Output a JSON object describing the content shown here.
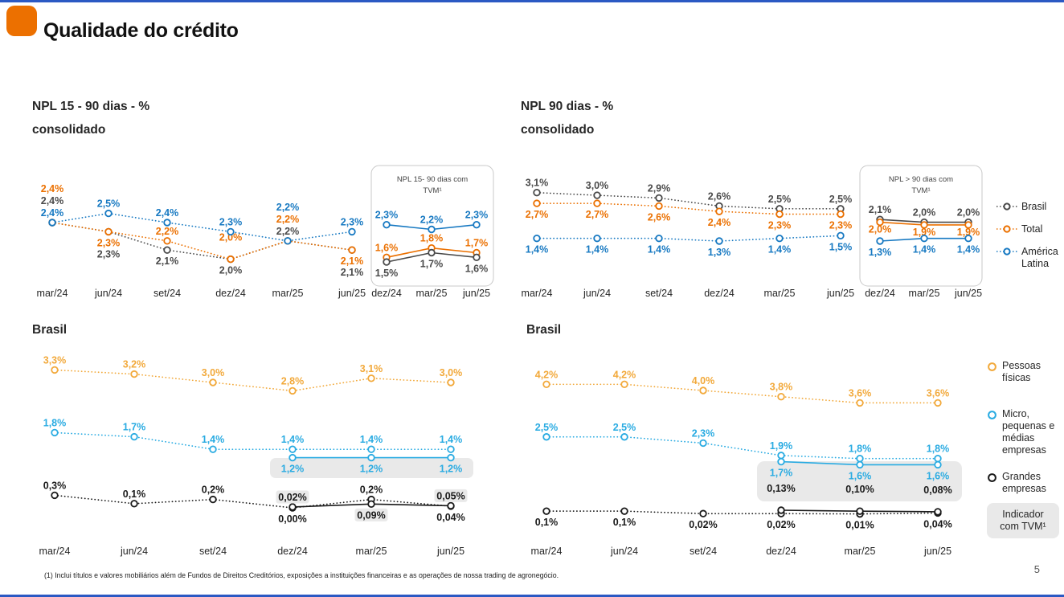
{
  "page": {
    "title": "Qualidade do crédito",
    "page_number": "5",
    "footnote": "(1) Inclui títulos e valores mobiliários além de Fundos de Direitos Creditórios, exposições a instituições financeiras e as operações de nossa trading de agronegócio."
  },
  "colors": {
    "brand_orange": "#EC7000",
    "edge_blue": "#2B59C3",
    "series_brasil": "#4A4A4A",
    "series_total": "#EB7000",
    "series_america_latina": "#1779C2",
    "series_pessoas_fisicas": "#F2A93B",
    "series_mpme": "#29ABE2",
    "series_grandes": "#1A1A1A",
    "highlight_box": "#E9E9E9"
  },
  "legend_top": {
    "items": [
      {
        "label": "Brasil",
        "color_key": "series_brasil"
      },
      {
        "label": "Total",
        "color_key": "series_total"
      },
      {
        "label": "América Latina",
        "color_key": "series_america_latina"
      }
    ]
  },
  "legend_bottom": {
    "items": [
      {
        "label": "Pessoas físicas",
        "color_key": "series_pessoas_fisicas"
      },
      {
        "label": "Micro, pequenas e médias empresas",
        "color_key": "series_mpme"
      },
      {
        "label": "Grandes empresas",
        "color_key": "series_grandes"
      }
    ],
    "tvm_label": "Indicador com TVM¹"
  },
  "chart_data": [
    {
      "type": "line",
      "title": "NPL 15 - 90 dias - %",
      "subtitle": "consolidado",
      "categories": [
        "mar/24",
        "jun/24",
        "set/24",
        "dez/24",
        "mar/25",
        "jun/25"
      ],
      "ylim": [
        1.9,
        2.6
      ],
      "grid": false,
      "series": [
        {
          "name": "Brasil",
          "values": [
            2.4,
            2.3,
            2.1,
            2.0,
            2.2,
            2.1
          ],
          "labels": [
            "2,4%",
            "2,3%",
            "2,1%",
            "2,0%",
            "2,2%",
            "2,1%"
          ]
        },
        {
          "name": "Total",
          "values": [
            2.4,
            2.3,
            2.2,
            2.0,
            2.2,
            2.1
          ],
          "labels": [
            "2,4%",
            "2,3%",
            "2,2%",
            "2,0%",
            "2,2%",
            "2,1%"
          ]
        },
        {
          "name": "América Latina",
          "values": [
            2.4,
            2.5,
            2.4,
            2.3,
            2.2,
            2.3
          ],
          "labels": [
            "2,4%",
            "2,5%",
            "2,4%",
            "2,3%",
            "2,2%",
            "2,3%"
          ]
        }
      ]
    },
    {
      "type": "line",
      "title": "NPL 15- 90 dias com TVM¹",
      "title_lines": [
        "NPL 15- 90 dias com",
        "TVM¹"
      ],
      "categories": [
        "dez/24",
        "mar/25",
        "jun/25"
      ],
      "ylim": [
        1.4,
        2.4
      ],
      "grid": false,
      "series": [
        {
          "name": "América Latina",
          "values": [
            2.3,
            2.2,
            2.3
          ],
          "labels": [
            "2,3%",
            "2,2%",
            "2,3%"
          ]
        },
        {
          "name": "Total",
          "values": [
            1.6,
            1.8,
            1.7
          ],
          "labels": [
            "1,6%",
            "1,8%",
            "1,7%"
          ]
        },
        {
          "name": "Brasil",
          "values": [
            1.5,
            1.7,
            1.6
          ],
          "labels": [
            "1,5%",
            "1,7%",
            "1,6%"
          ]
        }
      ]
    },
    {
      "type": "line",
      "title": "NPL 90 dias - %",
      "subtitle": "consolidado",
      "categories": [
        "mar/24",
        "jun/24",
        "set/24",
        "dez/24",
        "mar/25",
        "jun/25"
      ],
      "ylim": [
        1.2,
        3.3
      ],
      "grid": false,
      "series": [
        {
          "name": "Brasil",
          "values": [
            3.1,
            3.0,
            2.9,
            2.6,
            2.5,
            2.5
          ],
          "labels": [
            "3,1%",
            "3,0%",
            "2,9%",
            "2,6%",
            "2,5%",
            "2,5%"
          ]
        },
        {
          "name": "Total",
          "values": [
            2.7,
            2.7,
            2.6,
            2.4,
            2.3,
            2.3
          ],
          "labels": [
            "2,7%",
            "2,7%",
            "2,6%",
            "2,4%",
            "2,3%",
            "2,3%"
          ]
        },
        {
          "name": "América Latina",
          "values": [
            1.4,
            1.4,
            1.4,
            1.3,
            1.4,
            1.5
          ],
          "labels": [
            "1,4%",
            "1,4%",
            "1,4%",
            "1,3%",
            "1,4%",
            "1,5%"
          ]
        }
      ]
    },
    {
      "type": "line",
      "title": "NPL > 90 dias com TVM¹",
      "title_lines": [
        "NPL > 90 dias com",
        "TVM¹"
      ],
      "categories": [
        "dez/24",
        "mar/25",
        "jun/25"
      ],
      "ylim": [
        1.2,
        2.3
      ],
      "grid": false,
      "series": [
        {
          "name": "Brasil",
          "values": [
            2.1,
            2.0,
            2.0
          ],
          "labels": [
            "2,1%",
            "2,0%",
            "2,0%"
          ]
        },
        {
          "name": "Total",
          "values": [
            2.0,
            1.9,
            1.9
          ],
          "labels": [
            "2,0%",
            "1,9%",
            "1,9%"
          ]
        },
        {
          "name": "América Latina",
          "values": [
            1.3,
            1.4,
            1.4
          ],
          "labels": [
            "1,3%",
            "1,4%",
            "1,4%"
          ]
        }
      ]
    },
    {
      "type": "line",
      "title": "Brasil",
      "categories": [
        "mar/24",
        "jun/24",
        "set/24",
        "dez/24",
        "mar/25",
        "jun/25"
      ],
      "ylim": [
        0,
        3.5
      ],
      "grid": false,
      "series": [
        {
          "name": "Pessoas físicas",
          "values": [
            3.3,
            3.2,
            3.0,
            2.8,
            3.1,
            3.0
          ],
          "labels": [
            "3,3%",
            "3,2%",
            "3,0%",
            "2,8%",
            "3,1%",
            "3,0%"
          ]
        },
        {
          "name": "Micro, pequenas e médias empresas",
          "values": [
            1.8,
            1.7,
            1.4,
            1.4,
            1.4,
            1.4
          ],
          "labels": [
            "1,8%",
            "1,7%",
            "1,4%",
            "1,4%",
            "1,4%",
            "1,4%"
          ]
        },
        {
          "name": "Micro, pequenas e médias empresas (com TVM)",
          "values": [
            null,
            null,
            null,
            1.2,
            1.2,
            1.2
          ],
          "labels": [
            null,
            null,
            null,
            "1,2%",
            "1,2%",
            "1,2%"
          ]
        },
        {
          "name": "Grandes empresas",
          "values": [
            0.3,
            0.1,
            0.2,
            0.0,
            0.2,
            0.04
          ],
          "labels": [
            "0,3%",
            "0,1%",
            "0,2%",
            "0,00%",
            "0,2%",
            "0,04%"
          ]
        },
        {
          "name": "Grandes empresas (com TVM)",
          "values": [
            null,
            null,
            null,
            0.02,
            0.09,
            0.05
          ],
          "labels": [
            null,
            null,
            null,
            "0,02%",
            "0,09%",
            "0,05%"
          ]
        }
      ]
    },
    {
      "type": "line",
      "title": "Brasil",
      "categories": [
        "mar/24",
        "jun/24",
        "set/24",
        "dez/24",
        "mar/25",
        "jun/25"
      ],
      "ylim": [
        0,
        4.5
      ],
      "grid": false,
      "series": [
        {
          "name": "Pessoas físicas",
          "values": [
            4.2,
            4.2,
            4.0,
            3.8,
            3.6,
            3.6
          ],
          "labels": [
            "4,2%",
            "4,2%",
            "4,0%",
            "3,8%",
            "3,6%",
            "3,6%"
          ]
        },
        {
          "name": "Micro, pequenas e médias empresas",
          "values": [
            2.5,
            2.5,
            2.3,
            1.9,
            1.8,
            1.8
          ],
          "labels": [
            "2,5%",
            "2,5%",
            "2,3%",
            "1,9%",
            "1,8%",
            "1,8%"
          ]
        },
        {
          "name": "Micro, pequenas e médias empresas (com TVM)",
          "values": [
            null,
            null,
            null,
            1.7,
            1.6,
            1.6
          ],
          "labels": [
            null,
            null,
            null,
            "1,7%",
            "1,6%",
            "1,6%"
          ]
        },
        {
          "name": "Grandes empresas",
          "values": [
            0.1,
            0.1,
            0.02,
            0.02,
            0.01,
            0.04
          ],
          "labels": [
            "0,1%",
            "0,1%",
            "0,02%",
            "0,02%",
            "0,01%",
            "0,04%"
          ]
        },
        {
          "name": "Grandes empresas (com TVM)",
          "values": [
            null,
            null,
            null,
            0.13,
            0.1,
            0.08
          ],
          "labels": [
            null,
            null,
            null,
            "0,13%",
            "0,10%",
            "0,08%"
          ]
        }
      ]
    }
  ]
}
